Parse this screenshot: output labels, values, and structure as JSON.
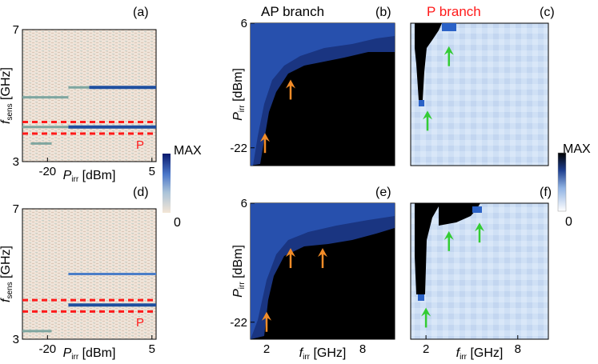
{
  "colors": {
    "arrow_orange": "#f28c28",
    "arrow_green": "#33cc33",
    "p_marker_red": "#ff1a1a",
    "trace_blue": "#1f4fa0",
    "black_region": "#000000",
    "light_blue_bg": "#cfe0f5",
    "spectrum_bg": "#efe3d8"
  },
  "chart_data": [
    {
      "panel": "(a)",
      "type": "heatmap",
      "title": "",
      "xlabel_main": "P",
      "xlabel_sub": "irr",
      "xlabel_unit": "[dBm]",
      "ylabel_main": "f",
      "ylabel_sub": "sens",
      "ylabel_unit": "[GHz]",
      "xlim": [
        -26,
        6
      ],
      "ylim": [
        3,
        7
      ],
      "x_ticks": [
        -20,
        5
      ],
      "y_ticks": [
        3,
        7
      ],
      "traces": [
        {
          "x": [
            -26,
            -15
          ],
          "y": 4.95,
          "strength": "weak"
        },
        {
          "x": [
            -15,
            -10
          ],
          "y": 5.25,
          "strength": "weak"
        },
        {
          "x": [
            -10,
            6
          ],
          "y": 5.25,
          "strength": "strong"
        },
        {
          "x": [
            -26,
            -15
          ],
          "y": 4.05,
          "strength": "weak"
        },
        {
          "x": [
            -15,
            6
          ],
          "y": 4.05,
          "strength": "strong"
        },
        {
          "x": [
            -24,
            -19
          ],
          "y": 3.55,
          "strength": "weak"
        }
      ],
      "band_lines": [
        4.2,
        3.85
      ],
      "band_label": "P"
    },
    {
      "panel": "(d)",
      "type": "heatmap",
      "title": "",
      "xlabel_main": "P",
      "xlabel_sub": "irr",
      "xlabel_unit": "[dBm]",
      "ylabel_main": "f",
      "ylabel_sub": "sens",
      "ylabel_unit": "[GHz]",
      "xlim": [
        -26,
        6
      ],
      "ylim": [
        3,
        7
      ],
      "x_ticks": [
        -20,
        5
      ],
      "y_ticks": [
        3,
        7
      ],
      "traces": [
        {
          "x": [
            -15,
            6
          ],
          "y": 5.0,
          "strength": "medium"
        },
        {
          "x": [
            -15,
            6
          ],
          "y": 4.05,
          "strength": "strong"
        },
        {
          "x": [
            -26,
            -19
          ],
          "y": 3.25,
          "strength": "weak"
        }
      ],
      "band_lines": [
        4.2,
        3.85
      ],
      "band_label": "P"
    },
    {
      "type": "colorbar",
      "label_max": "MAX",
      "label_min": "0",
      "scale": "spectrum (blue to beige)"
    },
    {
      "panel": "(b)",
      "type": "heatmap",
      "title": "AP branch",
      "xlim": [
        1,
        10
      ],
      "ylim": [
        -26,
        6
      ],
      "x_ticks": [],
      "y_ticks": [
        6,
        -22
      ],
      "ylabel_main": "P",
      "ylabel_sub": "irr",
      "ylabel_unit": "[dBm]",
      "arrows": [
        {
          "x": 1.9,
          "y": -21
        },
        {
          "x": 3.5,
          "y": -9
        }
      ],
      "arrow_color": "orange"
    },
    {
      "panel": "(c)",
      "type": "heatmap",
      "title": "P branch",
      "xlim": [
        1,
        10
      ],
      "ylim": [
        -26,
        6
      ],
      "x_ticks": [],
      "y_ticks": [],
      "arrows": [
        {
          "x": 2.1,
          "y": -16
        },
        {
          "x": 3.5,
          "y": -1.5
        }
      ],
      "arrow_color": "green"
    },
    {
      "type": "colorbar",
      "label_max": "MAX",
      "label_min": "0",
      "scale": "blues (black to white)"
    },
    {
      "panel": "(e)",
      "type": "heatmap",
      "title": "",
      "xlabel_main": "f",
      "xlabel_sub": "irr",
      "xlabel_unit": "[GHz]",
      "xlim": [
        1,
        10
      ],
      "ylim": [
        -26,
        6
      ],
      "x_ticks": [
        2,
        8
      ],
      "y_ticks": [
        6,
        -22
      ],
      "ylabel_main": "P",
      "ylabel_sub": "irr",
      "ylabel_unit": "[dBm]",
      "arrows": [
        {
          "x": 2.0,
          "y": -22
        },
        {
          "x": 3.5,
          "y": -7
        },
        {
          "x": 5.5,
          "y": -7
        }
      ],
      "arrow_color": "orange"
    },
    {
      "panel": "(f)",
      "type": "heatmap",
      "title": "",
      "xlabel_main": "f",
      "xlabel_sub": "irr",
      "xlabel_unit": "[GHz]",
      "xlim": [
        1,
        10
      ],
      "ylim": [
        -26,
        6
      ],
      "x_ticks": [
        2,
        8
      ],
      "y_ticks": [],
      "arrows": [
        {
          "x": 2.0,
          "y": -21
        },
        {
          "x": 3.5,
          "y": -3
        },
        {
          "x": 5.5,
          "y": -1
        }
      ],
      "arrow_color": "green"
    }
  ]
}
